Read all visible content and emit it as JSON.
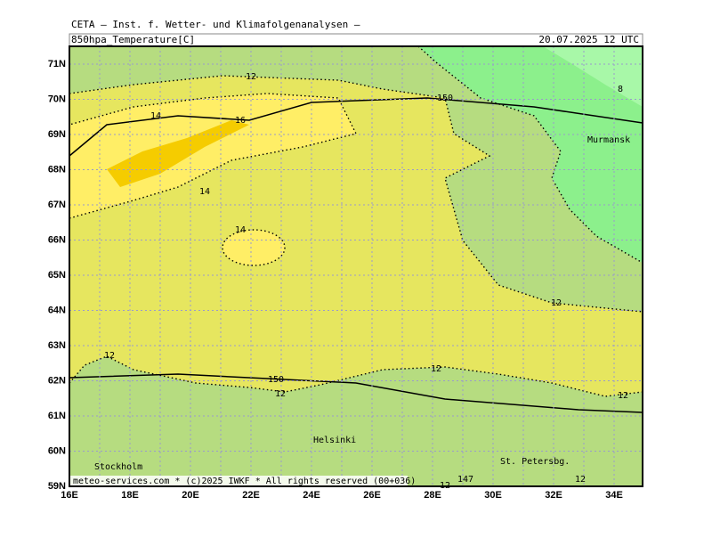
{
  "header": {
    "title": "CETA — Inst. f. Wetter- und Klimafolgenanalysen —",
    "field": "850hpa_Temperature[C]",
    "time": "20.07.2025  12 UTC"
  },
  "lat_labels": [
    "71N",
    "70N",
    "69N",
    "68N",
    "67N",
    "66N",
    "65N",
    "64N",
    "63N",
    "62N",
    "61N",
    "60N",
    "59N"
  ],
  "lon_labels": [
    "16E",
    "18E",
    "20E",
    "22E",
    "24E",
    "26E",
    "28E",
    "30E",
    "32E",
    "34E"
  ],
  "contour_labels": [
    "12",
    "14",
    "150",
    "16",
    "14",
    "14",
    "8",
    "12",
    "12",
    "12",
    "150",
    "12",
    "12",
    "147",
    "12",
    "12"
  ],
  "cities": [
    "Murmansk",
    "Helsinki",
    "Stockholm",
    "St. Petersbg."
  ],
  "footer": "meteo-services.com * (c)2025 IWKF * All rights reserved (00+036)"
}
